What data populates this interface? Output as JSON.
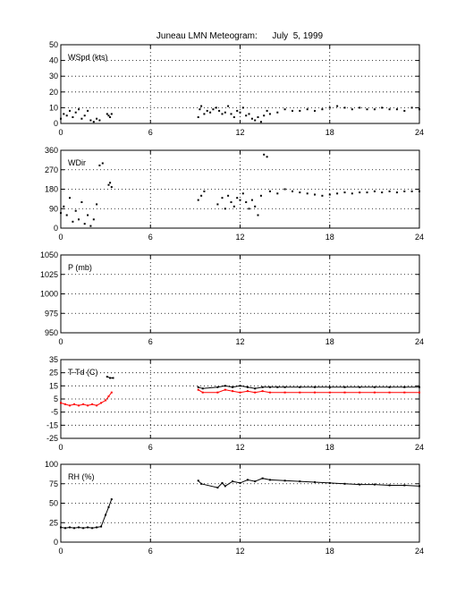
{
  "title": "Juneau LMN Meteogram:      July  5, 1999",
  "chart_data": [
    {
      "type": "scatter",
      "label": "WSpd (kts)",
      "xlim": [
        0,
        24
      ],
      "ylim": [
        0,
        50
      ],
      "xticks": [
        0,
        6,
        12,
        18,
        24
      ],
      "yticks": [
        0,
        10,
        20,
        30,
        40,
        50
      ],
      "grid": true,
      "series": [
        {
          "color": "#000000",
          "x": [
            0.0,
            0.2,
            0.4,
            0.6,
            0.8,
            1.0,
            1.2,
            1.4,
            1.6,
            1.8,
            2.0,
            2.2,
            2.4,
            2.6,
            3.1,
            3.2,
            3.3,
            3.4,
            9.2,
            9.3,
            9.4,
            9.6,
            9.8,
            10.0,
            10.2,
            10.4,
            10.6,
            10.8,
            11.0,
            11.2,
            11.4,
            11.6,
            11.8,
            12.0,
            12.2,
            12.4,
            12.6,
            12.8,
            13.0,
            13.2,
            13.4,
            13.6,
            13.8,
            14.0,
            14.5,
            15.0,
            15.5,
            16.0,
            16.5,
            17.0,
            17.5,
            18.0,
            18.5,
            19.0,
            19.5,
            20.0,
            20.5,
            21.0,
            21.5,
            22.0,
            22.5,
            23.0,
            23.5,
            24.0
          ],
          "y": [
            3,
            6,
            5,
            8,
            4,
            7,
            9,
            3,
            5,
            8,
            2,
            1,
            3,
            2,
            6,
            5,
            4,
            6,
            4,
            9,
            11,
            6,
            8,
            7,
            9,
            10,
            8,
            6,
            7,
            11,
            6,
            4,
            8,
            7,
            10,
            5,
            6,
            3,
            2,
            4,
            1,
            5,
            8,
            6,
            7,
            9,
            8,
            8,
            9,
            8,
            9,
            10,
            11,
            10,
            9,
            10,
            9,
            9,
            10,
            9,
            9,
            8,
            10,
            9
          ]
        }
      ]
    },
    {
      "type": "scatter",
      "label": "WDir",
      "xlim": [
        0,
        24
      ],
      "ylim": [
        0,
        360
      ],
      "xticks": [
        0,
        6,
        12,
        18,
        24
      ],
      "yticks": [
        0,
        90,
        180,
        270,
        360
      ],
      "grid": true,
      "series": [
        {
          "color": "#000000",
          "x": [
            0.0,
            0.2,
            0.4,
            0.6,
            0.8,
            1.0,
            1.2,
            1.4,
            1.6,
            1.8,
            2.0,
            2.2,
            2.4,
            2.6,
            2.8,
            3.2,
            3.3,
            3.4,
            9.2,
            9.4,
            9.6,
            10.5,
            10.8,
            11.0,
            11.2,
            11.4,
            11.6,
            11.8,
            12.0,
            12.2,
            12.4,
            12.6,
            12.8,
            13.0,
            13.2,
            13.4,
            13.6,
            13.8,
            14.0,
            14.5,
            15.0,
            15.5,
            16.0,
            16.5,
            17.0,
            17.5,
            18.0,
            18.5,
            19.0,
            19.5,
            20.0,
            20.5,
            21.0,
            21.5,
            22.0,
            22.5,
            23.0,
            23.5,
            24.0
          ],
          "y": [
            70,
            100,
            60,
            140,
            30,
            80,
            40,
            120,
            20,
            60,
            10,
            40,
            110,
            290,
            300,
            200,
            210,
            190,
            130,
            150,
            170,
            110,
            140,
            90,
            150,
            120,
            100,
            140,
            130,
            160,
            120,
            90,
            130,
            100,
            60,
            150,
            340,
            330,
            170,
            160,
            180,
            170,
            165,
            160,
            155,
            150,
            155,
            160,
            165,
            160,
            165,
            165,
            170,
            165,
            170,
            165,
            170,
            170,
            170
          ]
        }
      ]
    },
    {
      "type": "scatter",
      "label": "P (mb)",
      "xlim": [
        0,
        24
      ],
      "ylim": [
        950,
        1050
      ],
      "xticks": [
        0,
        6,
        12,
        18,
        24
      ],
      "yticks": [
        950,
        975,
        1000,
        1025,
        1050
      ],
      "grid": true,
      "series": []
    },
    {
      "type": "line",
      "label": "T-Td (C)",
      "xlim": [
        0,
        24
      ],
      "ylim": [
        -25,
        35
      ],
      "xticks": [
        0,
        6,
        12,
        18,
        24
      ],
      "yticks": [
        -25,
        -15,
        -5,
        5,
        15,
        25,
        35
      ],
      "grid": true,
      "series": [
        {
          "color": "#000000",
          "x": [
            3.1,
            3.3,
            3.5,
            9.2,
            9.5,
            10.5,
            11.0,
            11.5,
            12.0,
            12.5,
            13.0,
            13.5,
            14.0,
            14.5,
            15.0,
            16.0,
            17.0,
            18.0,
            19.0,
            20.0,
            21.0,
            22.0,
            23.0,
            24.0
          ],
          "y": [
            22,
            21,
            21,
            14,
            13,
            14,
            15,
            14,
            15,
            14,
            13,
            14,
            14,
            14,
            14,
            14,
            14,
            14,
            14,
            14,
            14,
            14,
            14,
            14
          ]
        },
        {
          "color": "#ff0000",
          "x": [
            0.0,
            0.3,
            0.6,
            0.9,
            1.2,
            1.5,
            1.8,
            2.1,
            2.4,
            2.7,
            3.0,
            3.2,
            3.4,
            9.2,
            9.5,
            10.5,
            11.0,
            11.5,
            12.0,
            12.5,
            13.0,
            13.5,
            14.0,
            15.0,
            16.0,
            17.0,
            18.0,
            19.0,
            20.0,
            21.0,
            22.0,
            23.0,
            24.0
          ],
          "y": [
            2,
            1,
            0,
            1,
            0,
            1,
            0,
            1,
            0,
            2,
            4,
            7,
            10,
            12,
            10,
            10,
            12,
            11,
            10,
            11,
            10,
            11,
            10,
            10,
            10,
            10,
            10,
            10,
            10,
            10,
            10,
            10,
            10
          ]
        }
      ]
    },
    {
      "type": "line",
      "label": "RH (%)",
      "xlim": [
        0,
        24
      ],
      "ylim": [
        0,
        100
      ],
      "xticks": [
        0,
        6,
        12,
        18,
        24
      ],
      "yticks": [
        0,
        25,
        50,
        75,
        100
      ],
      "grid": true,
      "series": [
        {
          "color": "#000000",
          "x": [
            0.0,
            0.3,
            0.6,
            0.9,
            1.2,
            1.5,
            1.8,
            2.1,
            2.4,
            2.7,
            3.0,
            3.2,
            3.4,
            9.2,
            9.4,
            10.5,
            10.8,
            11.0,
            11.5,
            12.0,
            12.5,
            13.0,
            13.5,
            14.0,
            15.0,
            16.0,
            17.0,
            18.0,
            19.0,
            20.0,
            21.0,
            22.0,
            23.0,
            24.0
          ],
          "y": [
            19,
            18,
            19,
            18,
            19,
            18,
            19,
            18,
            19,
            20,
            35,
            45,
            55,
            79,
            75,
            70,
            76,
            72,
            78,
            76,
            80,
            78,
            82,
            80,
            79,
            78,
            77,
            76,
            75,
            74,
            74,
            73,
            73,
            72
          ]
        }
      ]
    }
  ]
}
